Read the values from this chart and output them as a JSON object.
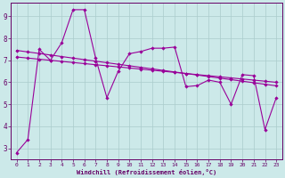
{
  "x": [
    0,
    1,
    2,
    3,
    4,
    5,
    6,
    7,
    8,
    9,
    10,
    11,
    12,
    13,
    14,
    15,
    16,
    17,
    18,
    19,
    20,
    21,
    22,
    23
  ],
  "y_main": [
    2.8,
    3.4,
    7.5,
    7.0,
    7.8,
    9.3,
    9.3,
    7.1,
    5.3,
    6.5,
    7.3,
    7.4,
    7.55,
    7.55,
    7.6,
    5.8,
    5.85,
    6.1,
    6.0,
    5.0,
    6.35,
    6.3,
    3.85,
    5.3
  ],
  "y_trend1": [
    7.45,
    7.38,
    7.31,
    7.24,
    7.17,
    7.1,
    7.03,
    6.96,
    6.89,
    6.82,
    6.75,
    6.68,
    6.61,
    6.54,
    6.47,
    6.4,
    6.33,
    6.26,
    6.19,
    6.12,
    6.05,
    5.98,
    5.91,
    5.84
  ],
  "y_trend2": [
    7.15,
    7.1,
    7.05,
    7.0,
    6.95,
    6.9,
    6.85,
    6.8,
    6.75,
    6.7,
    6.65,
    6.6,
    6.55,
    6.5,
    6.45,
    6.4,
    6.35,
    6.3,
    6.25,
    6.2,
    6.15,
    6.1,
    6.05,
    6.0
  ],
  "line_color": "#990099",
  "bg_color": "#cce9e9",
  "grid_color": "#aacccc",
  "axis_color": "#660066",
  "xlabel": "Windchill (Refroidissement éolien,°C)",
  "ylim": [
    2.5,
    9.6
  ],
  "xlim": [
    -0.5,
    23.5
  ],
  "yticks": [
    3,
    4,
    5,
    6,
    7,
    8,
    9
  ],
  "xticks": [
    0,
    1,
    2,
    3,
    4,
    5,
    6,
    7,
    8,
    9,
    10,
    11,
    12,
    13,
    14,
    15,
    16,
    17,
    18,
    19,
    20,
    21,
    22,
    23
  ],
  "marker_size": 2.2,
  "line_width": 0.8
}
